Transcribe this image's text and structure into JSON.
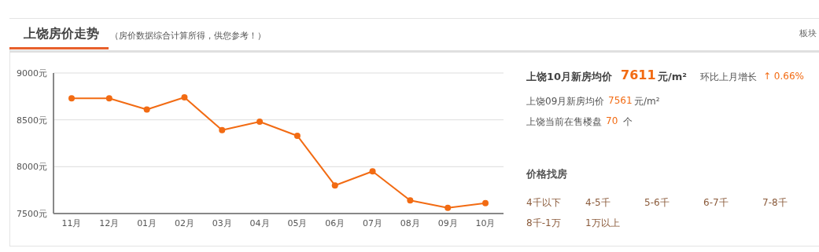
{
  "chart_data": [
    {
      "type": "line",
      "title": "上饶房价走势",
      "subtitle": "（房价数据综合计算所得，供您参考！）",
      "categories": [
        "11月",
        "12月",
        "01月",
        "02月",
        "03月",
        "04月",
        "05月",
        "06月",
        "07月",
        "08月",
        "09月",
        "10月"
      ],
      "series": [
        {
          "color": "#f26b13",
          "values": [
            8730,
            8730,
            8610,
            8740,
            8390,
            8480,
            8330,
            7800,
            7950,
            7640,
            7561,
            7611
          ]
        }
      ],
      "ylim": [
        7500,
        9000
      ],
      "yticks": [
        {
          "value": 7500,
          "label": "7500元"
        },
        {
          "value": 8000,
          "label": "8000元"
        },
        {
          "value": 8500,
          "label": "8500元"
        },
        {
          "value": 9000,
          "label": "9000元"
        }
      ],
      "grid": "y",
      "marker": "circle",
      "line_style": "solid"
    },
    {
      "type": "other",
      "annotations": [
        "板块",
        "上饶10月新房均价",
        "7611",
        "元/m²",
        "环比上月增长",
        "↑ 0.66%",
        "上饶09月新房均价",
        "7561",
        "元/m²",
        "上饶当前在售楼盘",
        "70",
        "个",
        "价格找房",
        "4千以下",
        "4-5千",
        "5-6千",
        "6-7千",
        "7-8千",
        "8千-1万",
        "1万以上"
      ]
    }
  ]
}
